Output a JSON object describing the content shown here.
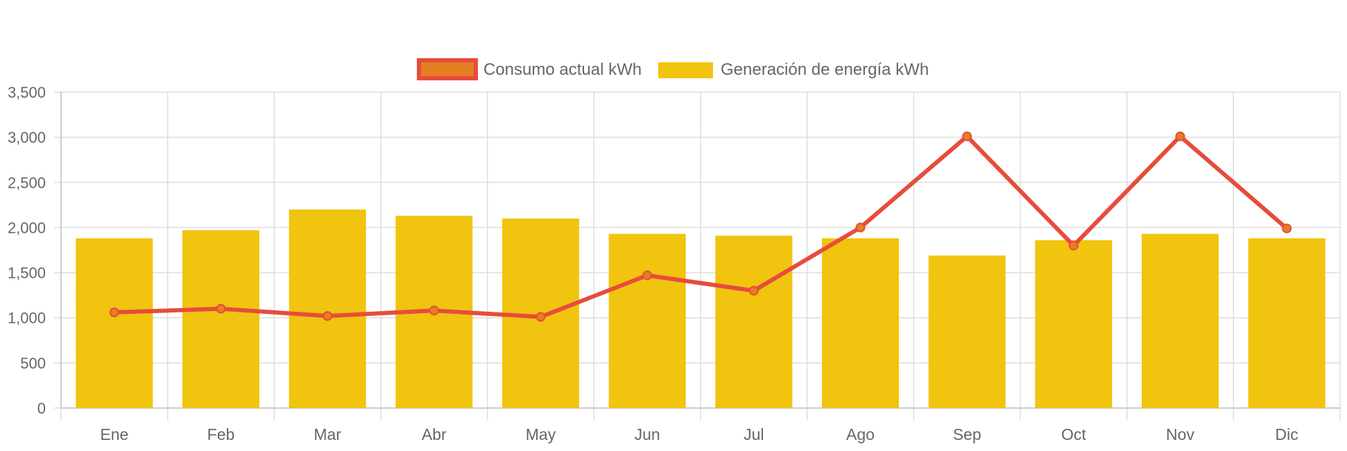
{
  "chart_data": {
    "type": "bar",
    "title": "",
    "xlabel": "",
    "ylabel": "",
    "ylim": [
      0,
      3500
    ],
    "yticks": [
      0,
      500,
      1000,
      1500,
      2000,
      2500,
      3000,
      3500
    ],
    "ytick_labels": [
      "0",
      "500",
      "1,000",
      "1,500",
      "2,000",
      "2,500",
      "3,000",
      "3,500"
    ],
    "grid": true,
    "legend_position": "top-center",
    "categories": [
      "Ene",
      "Feb",
      "Mar",
      "Abr",
      "May",
      "Jun",
      "Jul",
      "Ago",
      "Sep",
      "Oct",
      "Nov",
      "Dic"
    ],
    "series": [
      {
        "name": "Consumo actual kWh",
        "type": "line",
        "color": "#E74C3C",
        "point_color": "#E67E22",
        "values": [
          1060,
          1100,
          1020,
          1080,
          1010,
          1470,
          1300,
          2000,
          3010,
          1800,
          3010,
          1990
        ]
      },
      {
        "name": "Generación de energía kWh",
        "type": "bar",
        "color": "#F1C40F",
        "values": [
          1880,
          1970,
          2200,
          2130,
          2100,
          1930,
          1910,
          1880,
          1690,
          1860,
          1930,
          1880
        ]
      }
    ]
  },
  "colors": {
    "grid": "#DDDDDD",
    "axis": "#CCCCCC",
    "text": "#666666"
  }
}
